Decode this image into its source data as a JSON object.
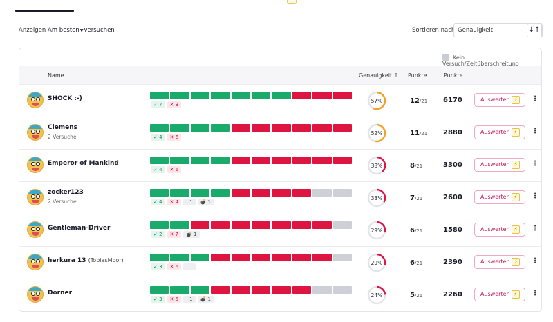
{
  "controls": {
    "show_label": "Anzeigen",
    "show_value": "Am besten",
    "show_suffix": "versuchen",
    "sort_label": "Sortieren nach:",
    "sort_value": "Genauigkeit",
    "sort_direction_symbol": "↓↑"
  },
  "legend": {
    "label": "Kein Versuch/Zeitüberschreitung"
  },
  "columns": {
    "name": "Name",
    "accuracy": "Genauigkeit ↑",
    "points_count": "Punkte",
    "points_score": "Punkte"
  },
  "colors": {
    "correct": "#1aaa6b",
    "wrong": "#dd1540",
    "none": "#cdd0d6",
    "gauge_red": "#dd1540",
    "gauge_orange": "#f2a122"
  },
  "rows": [
    {
      "name": "SHOCK :-)",
      "alias": "",
      "sub": "",
      "results": [
        "c",
        "c",
        "c",
        "c",
        "c",
        "c",
        "c",
        "w",
        "w",
        "w"
      ],
      "correct": "✓ 7",
      "wrong": "✕ 3",
      "none": "",
      "bomb": "",
      "accuracy": 57,
      "accuracy_label": "57%",
      "score": "12",
      "total": "/21",
      "points": "6170",
      "action": "Auswerten"
    },
    {
      "name": "Clemens",
      "alias": "",
      "sub": "2 Versuche",
      "results": [
        "c",
        "c",
        "c",
        "c",
        "w",
        "w",
        "w",
        "w",
        "w",
        "w"
      ],
      "correct": "✓ 4",
      "wrong": "✕ 6",
      "none": "",
      "bomb": "",
      "accuracy": 52,
      "accuracy_label": "52%",
      "score": "11",
      "total": "/21",
      "points": "2880",
      "action": "Auswerten"
    },
    {
      "name": "Emperor of Mankind",
      "alias": "",
      "sub": "",
      "results": [
        "c",
        "c",
        "c",
        "c",
        "w",
        "w",
        "w",
        "w",
        "w",
        "w"
      ],
      "correct": "✓ 4",
      "wrong": "✕ 6",
      "none": "",
      "bomb": "",
      "accuracy": 38,
      "accuracy_label": "38%",
      "score": "8",
      "total": "/21",
      "points": "3300",
      "action": "Auswerten"
    },
    {
      "name": "zocker123",
      "alias": "",
      "sub": "2 Versuche",
      "results": [
        "c",
        "c",
        "c",
        "c",
        "w",
        "w",
        "w",
        "w",
        "n",
        "n"
      ],
      "correct": "✓ 4",
      "wrong": "✕ 4",
      "none": "! 1",
      "bomb": "💣 1",
      "accuracy": 33,
      "accuracy_label": "33%",
      "score": "7",
      "total": "/21",
      "points": "2600",
      "action": "Auswerten"
    },
    {
      "name": "Gentleman-Driver",
      "alias": "",
      "sub": "",
      "results": [
        "c",
        "c",
        "w",
        "w",
        "w",
        "w",
        "w",
        "w",
        "w",
        "n"
      ],
      "correct": "✓ 2",
      "wrong": "✕ 7",
      "none": "",
      "bomb": "💣 1",
      "accuracy": 29,
      "accuracy_label": "29%",
      "score": "6",
      "total": "/21",
      "points": "1580",
      "action": "Auswerten"
    },
    {
      "name": "herkura 13",
      "alias": "(TobiasMoor)",
      "sub": "",
      "results": [
        "c",
        "c",
        "c",
        "w",
        "w",
        "w",
        "w",
        "w",
        "w",
        "n"
      ],
      "correct": "✓ 3",
      "wrong": "✕ 6",
      "none": "! 1",
      "bomb": "",
      "accuracy": 29,
      "accuracy_label": "29%",
      "score": "6",
      "total": "/21",
      "points": "2390",
      "action": "Auswerten"
    },
    {
      "name": "Dorner",
      "alias": "",
      "sub": "",
      "results": [
        "c",
        "c",
        "c",
        "w",
        "w",
        "w",
        "w",
        "w",
        "n",
        "n"
      ],
      "correct": "✓ 3",
      "wrong": "✕ 5",
      "none": "! 1",
      "bomb": "💣 1",
      "accuracy": 24,
      "accuracy_label": "24%",
      "score": "5",
      "total": "/21",
      "points": "2260",
      "action": "Auswerten"
    }
  ]
}
